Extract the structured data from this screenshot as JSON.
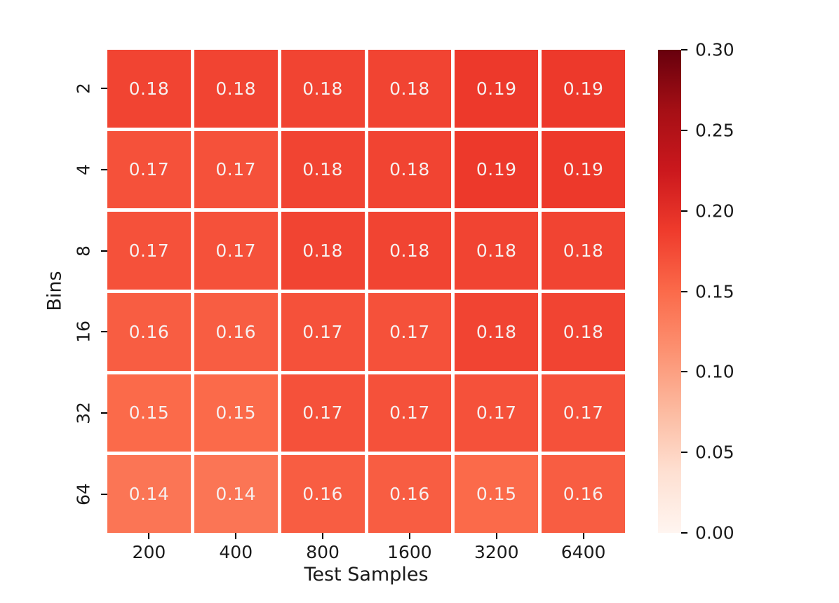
{
  "chart_data": {
    "type": "heatmap",
    "xlabel": "Test Samples",
    "ylabel": "Bins",
    "x_categories": [
      "200",
      "400",
      "800",
      "1600",
      "3200",
      "6400"
    ],
    "y_categories": [
      "2",
      "4",
      "8",
      "16",
      "32",
      "64"
    ],
    "values": [
      [
        0.18,
        0.18,
        0.18,
        0.18,
        0.19,
        0.19
      ],
      [
        0.17,
        0.17,
        0.18,
        0.18,
        0.19,
        0.19
      ],
      [
        0.17,
        0.17,
        0.18,
        0.18,
        0.18,
        0.18
      ],
      [
        0.16,
        0.16,
        0.17,
        0.17,
        0.18,
        0.18
      ],
      [
        0.15,
        0.15,
        0.17,
        0.17,
        0.17,
        0.17
      ],
      [
        0.14,
        0.14,
        0.16,
        0.16,
        0.15,
        0.16
      ]
    ],
    "annotation_decimals": 2,
    "annotation_text_color": "#f7efee",
    "tick_text_color": "#1a1a1a",
    "background_color": "#ffffff",
    "grid": false,
    "legend": null,
    "colorbar": {
      "position": "right",
      "vmin": 0.0,
      "vmax": 0.3,
      "tick_values": [
        0.3,
        0.25,
        0.2,
        0.15,
        0.1,
        0.05,
        0.0
      ],
      "tick_labels": [
        "0.30",
        "0.25",
        "0.20",
        "0.15",
        "0.10",
        "0.05",
        "0.00"
      ],
      "colormap_name": "Reds",
      "colormap_stops": [
        {
          "t": 0.0,
          "color": "#fff5f0"
        },
        {
          "t": 0.125,
          "color": "#fee0d2"
        },
        {
          "t": 0.25,
          "color": "#fcbba1"
        },
        {
          "t": 0.375,
          "color": "#fc9272"
        },
        {
          "t": 0.5,
          "color": "#fb6a4a"
        },
        {
          "t": 0.625,
          "color": "#ef3b2c"
        },
        {
          "t": 0.75,
          "color": "#cb181d"
        },
        {
          "t": 0.875,
          "color": "#a50f15"
        },
        {
          "t": 1.0,
          "color": "#67000d"
        }
      ]
    }
  }
}
